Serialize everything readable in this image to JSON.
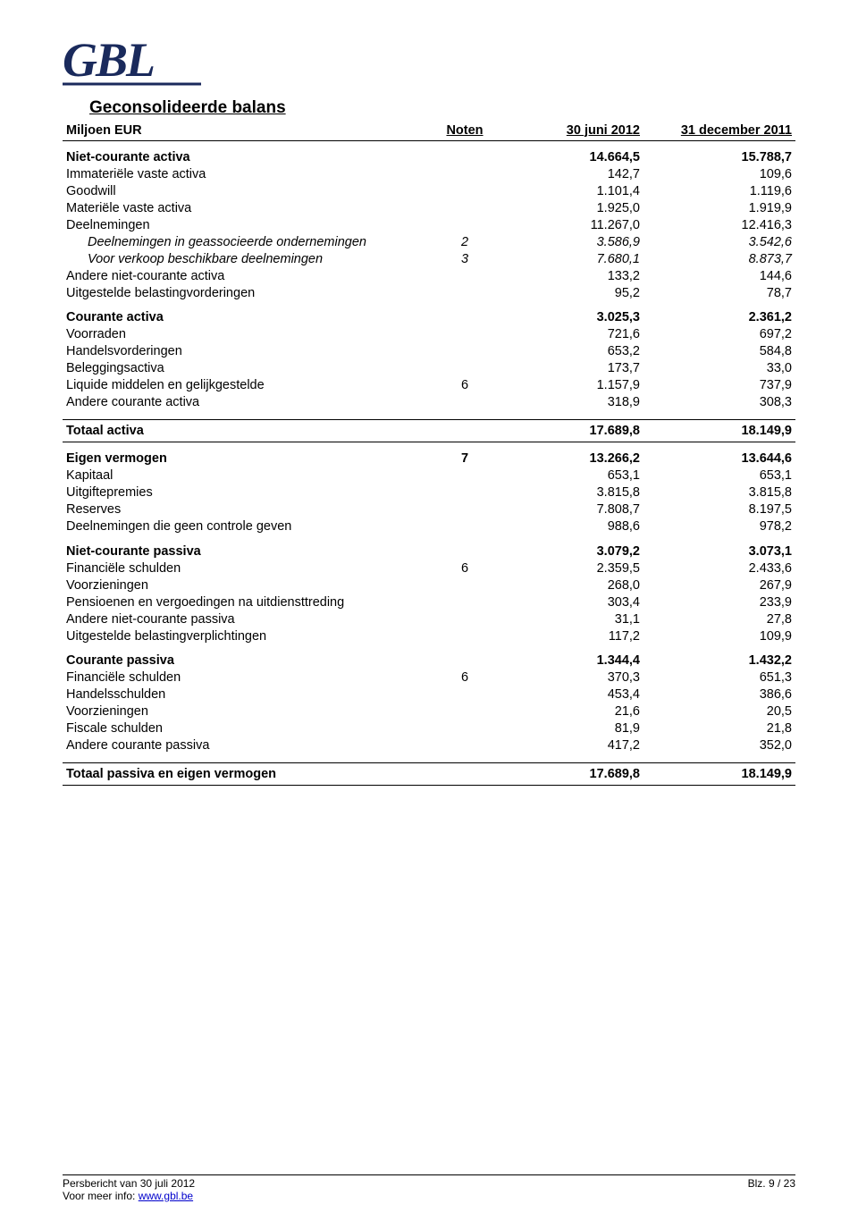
{
  "logo_text": "GBL",
  "title": "Geconsolideerde balans",
  "header": {
    "label": "Miljoen EUR",
    "noten": "Noten",
    "col1": "30 juni 2012",
    "col2": "31 december 2011"
  },
  "rows": [
    {
      "cls": "section section-first",
      "label": "Niet-courante activa",
      "note": "",
      "v1": "14.664,5",
      "v2": "15.788,7"
    },
    {
      "cls": "sub",
      "label": "Immateriële vaste activa",
      "note": "",
      "v1": "142,7",
      "v2": "109,6"
    },
    {
      "cls": "sub",
      "label": "Goodwill",
      "note": "",
      "v1": "1.101,4",
      "v2": "1.119,6"
    },
    {
      "cls": "sub",
      "label": "Materiële vaste activa",
      "note": "",
      "v1": "1.925,0",
      "v2": "1.919,9"
    },
    {
      "cls": "sub",
      "label": "Deelnemingen",
      "note": "",
      "v1": "11.267,0",
      "v2": "12.416,3"
    },
    {
      "cls": "sub-i",
      "label": "Deelnemingen in geassocieerde ondernemingen",
      "note": "2",
      "v1": "3.586,9",
      "v2": "3.542,6"
    },
    {
      "cls": "sub-i",
      "label": "Voor verkoop beschikbare deelnemingen",
      "note": "3",
      "v1": "7.680,1",
      "v2": "8.873,7"
    },
    {
      "cls": "sub",
      "label": "Andere niet-courante activa",
      "note": "",
      "v1": "133,2",
      "v2": "144,6"
    },
    {
      "cls": "sub",
      "label": "Uitgestelde belastingvorderingen",
      "note": "",
      "v1": "95,2",
      "v2": "78,7"
    },
    {
      "cls": "section section-first",
      "label": "Courante activa",
      "note": "",
      "v1": "3.025,3",
      "v2": "2.361,2"
    },
    {
      "cls": "sub",
      "label": "Voorraden",
      "note": "",
      "v1": "721,6",
      "v2": "697,2"
    },
    {
      "cls": "sub",
      "label": "Handelsvorderingen",
      "note": "",
      "v1": "653,2",
      "v2": "584,8"
    },
    {
      "cls": "sub",
      "label": "Beleggingsactiva",
      "note": "",
      "v1": "173,7",
      "v2": "33,0"
    },
    {
      "cls": "sub",
      "label": "Liquide middelen en gelijkgestelde",
      "note": "6",
      "v1": "1.157,9",
      "v2": "737,9"
    },
    {
      "cls": "sub",
      "label": "Andere courante activa",
      "note": "",
      "v1": "318,9",
      "v2": "308,3"
    },
    {
      "cls": "spacer",
      "label": "",
      "note": "",
      "v1": "",
      "v2": ""
    },
    {
      "cls": "total",
      "label": "Totaal activa",
      "note": "",
      "v1": "17.689,8",
      "v2": "18.149,9"
    },
    {
      "cls": "section section-first",
      "label": "Eigen vermogen",
      "note": "7",
      "v1": "13.266,2",
      "v2": "13.644,6"
    },
    {
      "cls": "sub",
      "label": "Kapitaal",
      "note": "",
      "v1": "653,1",
      "v2": "653,1"
    },
    {
      "cls": "sub",
      "label": "Uitgiftepremies",
      "note": "",
      "v1": "3.815,8",
      "v2": "3.815,8"
    },
    {
      "cls": "sub",
      "label": "Reserves",
      "note": "",
      "v1": "7.808,7",
      "v2": "8.197,5"
    },
    {
      "cls": "sub",
      "label": "Deelnemingen die geen controle geven",
      "note": "",
      "v1": "988,6",
      "v2": "978,2"
    },
    {
      "cls": "section section-first",
      "label": "Niet-courante passiva",
      "note": "",
      "v1": "3.079,2",
      "v2": "3.073,1"
    },
    {
      "cls": "sub",
      "label": "Financiële schulden",
      "note": "6",
      "v1": "2.359,5",
      "v2": "2.433,6"
    },
    {
      "cls": "sub",
      "label": "Voorzieningen",
      "note": "",
      "v1": "268,0",
      "v2": "267,9"
    },
    {
      "cls": "sub",
      "label": "Pensioenen en vergoedingen na uitdiensttreding",
      "note": "",
      "v1": "303,4",
      "v2": "233,9"
    },
    {
      "cls": "sub",
      "label": "Andere niet-courante passiva",
      "note": "",
      "v1": "31,1",
      "v2": "27,8"
    },
    {
      "cls": "sub",
      "label": "Uitgestelde belastingverplichtingen",
      "note": "",
      "v1": "117,2",
      "v2": "109,9"
    },
    {
      "cls": "section section-first",
      "label": "Courante passiva",
      "note": "",
      "v1": "1.344,4",
      "v2": "1.432,2"
    },
    {
      "cls": "sub",
      "label": "Financiële schulden",
      "note": "6",
      "v1": "370,3",
      "v2": "651,3"
    },
    {
      "cls": "sub",
      "label": "Handelsschulden",
      "note": "",
      "v1": "453,4",
      "v2": "386,6"
    },
    {
      "cls": "sub",
      "label": "Voorzieningen",
      "note": "",
      "v1": "21,6",
      "v2": "20,5"
    },
    {
      "cls": "sub",
      "label": "Fiscale schulden",
      "note": "",
      "v1": "81,9",
      "v2": "21,8"
    },
    {
      "cls": "sub",
      "label": "Andere courante passiva",
      "note": "",
      "v1": "417,2",
      "v2": "352,0"
    },
    {
      "cls": "spacer",
      "label": "",
      "note": "",
      "v1": "",
      "v2": ""
    },
    {
      "cls": "total",
      "label": "Totaal passiva en eigen vermogen",
      "note": "",
      "v1": "17.689,8",
      "v2": "18.149,9"
    }
  ],
  "footer": {
    "left_line1": "Persbericht van 30 juli 2012",
    "left_line2_prefix": "Voor meer info: ",
    "left_line2_link": "www.gbl.be",
    "right": "Blz. 9 / 23"
  },
  "colors": {
    "text": "#000000",
    "link": "#0000cc",
    "border": "#000000",
    "bg": "#ffffff",
    "logo_fill": "#1a2a5c"
  }
}
